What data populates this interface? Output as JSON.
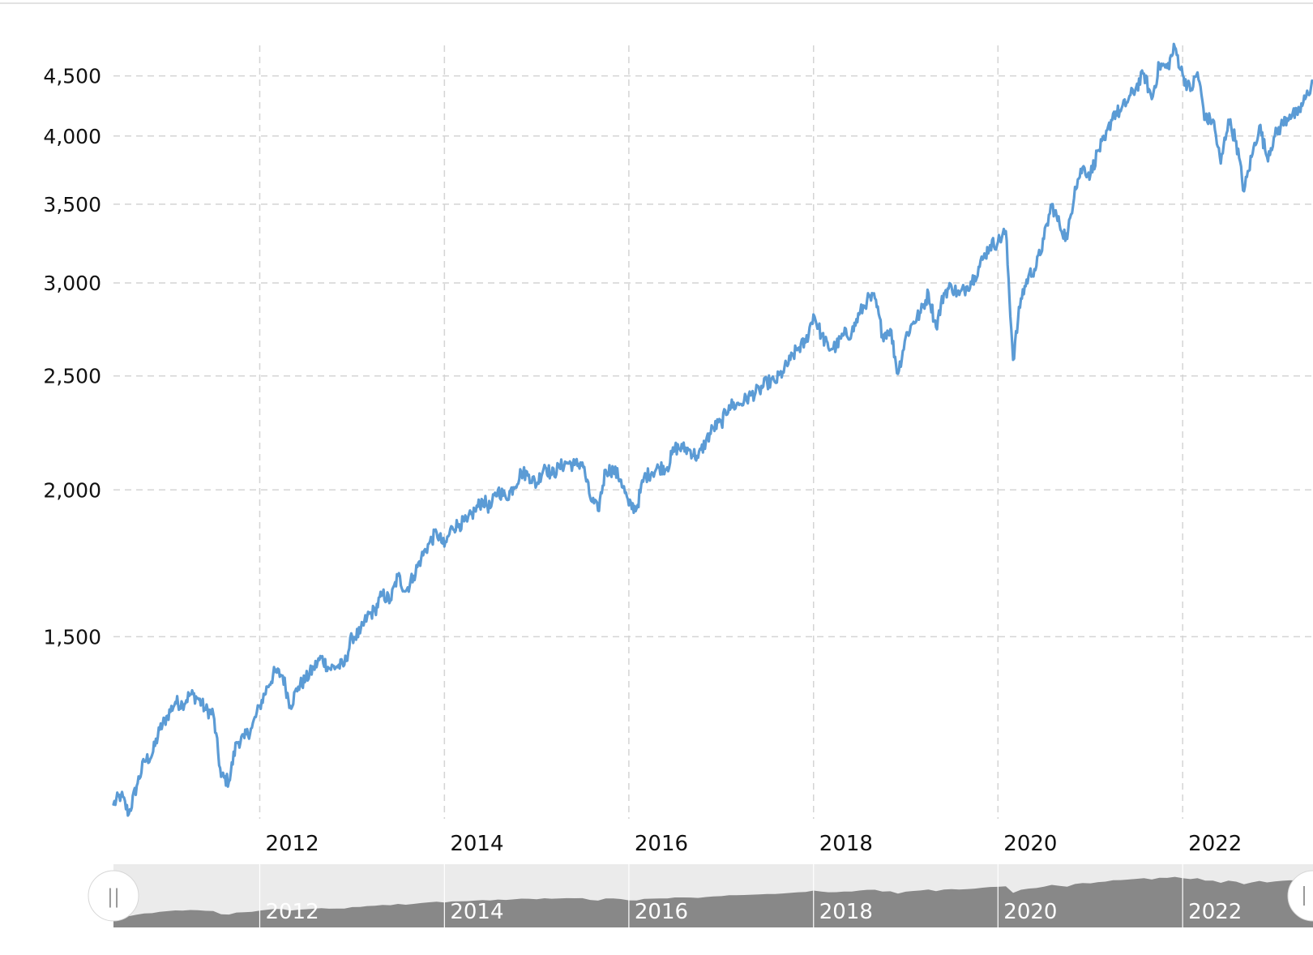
{
  "chart_data": {
    "type": "line",
    "title": "",
    "xlabel": "",
    "ylabel": "",
    "y_scale": "log",
    "ylim": [
      1050,
      4900
    ],
    "xlim": [
      "2010-06",
      "2023-06"
    ],
    "grid": true,
    "legend": "none",
    "yticks": [
      {
        "value": 1500,
        "label": "1,500"
      },
      {
        "value": 2000,
        "label": "2,000"
      },
      {
        "value": 2500,
        "label": "2,500"
      },
      {
        "value": 3000,
        "label": "3,000"
      },
      {
        "value": 3500,
        "label": "3,500"
      },
      {
        "value": 4000,
        "label": "4,000"
      },
      {
        "value": 4500,
        "label": "4,500"
      }
    ],
    "xticks": [
      {
        "value": "2012",
        "label": "2012"
      },
      {
        "value": "2014",
        "label": "2014"
      },
      {
        "value": "2016",
        "label": "2016"
      },
      {
        "value": "2018",
        "label": "2018"
      },
      {
        "value": "2020",
        "label": "2020"
      },
      {
        "value": "2022",
        "label": "2022"
      }
    ],
    "series": [
      {
        "color": "#5b9bd5",
        "x": [
          "2010-06-01",
          "2010-07-01",
          "2010-08-01",
          "2010-09-01",
          "2010-10-01",
          "2010-11-01",
          "2010-12-01",
          "2011-01-01",
          "2011-02-01",
          "2011-03-01",
          "2011-04-01",
          "2011-05-01",
          "2011-06-01",
          "2011-07-01",
          "2011-08-01",
          "2011-09-01",
          "2011-10-01",
          "2011-11-01",
          "2011-12-01",
          "2012-01-01",
          "2012-02-01",
          "2012-03-01",
          "2012-04-01",
          "2012-05-01",
          "2012-06-01",
          "2012-07-01",
          "2012-08-01",
          "2012-09-01",
          "2012-10-01",
          "2012-11-01",
          "2012-12-01",
          "2013-01-01",
          "2013-02-01",
          "2013-03-01",
          "2013-04-01",
          "2013-05-01",
          "2013-06-01",
          "2013-07-01",
          "2013-08-01",
          "2013-09-01",
          "2013-10-01",
          "2013-11-01",
          "2013-12-01",
          "2014-01-01",
          "2014-02-01",
          "2014-03-01",
          "2014-04-01",
          "2014-05-01",
          "2014-06-01",
          "2014-07-01",
          "2014-08-01",
          "2014-09-01",
          "2014-10-01",
          "2014-11-01",
          "2014-12-01",
          "2015-01-01",
          "2015-02-01",
          "2015-03-01",
          "2015-04-01",
          "2015-05-01",
          "2015-06-01",
          "2015-07-01",
          "2015-08-01",
          "2015-09-01",
          "2015-10-01",
          "2015-11-01",
          "2015-12-01",
          "2016-01-01",
          "2016-02-01",
          "2016-03-01",
          "2016-04-01",
          "2016-05-01",
          "2016-06-01",
          "2016-07-01",
          "2016-08-01",
          "2016-09-01",
          "2016-10-01",
          "2016-11-01",
          "2016-12-01",
          "2017-01-01",
          "2017-02-01",
          "2017-03-01",
          "2017-04-01",
          "2017-05-01",
          "2017-06-01",
          "2017-07-01",
          "2017-08-01",
          "2017-09-01",
          "2017-10-01",
          "2017-11-01",
          "2017-12-01",
          "2018-01-01",
          "2018-02-01",
          "2018-03-01",
          "2018-04-01",
          "2018-05-01",
          "2018-06-01",
          "2018-07-01",
          "2018-08-01",
          "2018-09-01",
          "2018-10-01",
          "2018-11-01",
          "2018-12-01",
          "2019-01-01",
          "2019-02-01",
          "2019-03-01",
          "2019-04-01",
          "2019-05-01",
          "2019-06-01",
          "2019-07-01",
          "2019-08-01",
          "2019-09-01",
          "2019-10-01",
          "2019-11-01",
          "2019-12-01",
          "2020-01-01",
          "2020-02-01",
          "2020-03-01",
          "2020-04-01",
          "2020-05-01",
          "2020-06-01",
          "2020-07-01",
          "2020-08-01",
          "2020-09-01",
          "2020-10-01",
          "2020-11-01",
          "2020-12-01",
          "2021-01-01",
          "2021-02-01",
          "2021-03-01",
          "2021-04-01",
          "2021-05-01",
          "2021-06-01",
          "2021-07-01",
          "2021-08-01",
          "2021-09-01",
          "2021-10-01",
          "2021-11-01",
          "2021-12-01",
          "2022-01-01",
          "2022-02-01",
          "2022-03-01",
          "2022-04-01",
          "2022-05-01",
          "2022-06-01",
          "2022-07-01",
          "2022-08-01",
          "2022-09-01",
          "2022-10-01",
          "2022-11-01",
          "2022-12-01",
          "2023-01-01",
          "2023-02-01",
          "2023-03-01",
          "2023-04-01",
          "2023-05-01",
          "2023-06-01"
        ],
        "y": [
          1080,
          1100,
          1060,
          1120,
          1175,
          1190,
          1250,
          1285,
          1320,
          1315,
          1340,
          1330,
          1300,
          1290,
          1140,
          1130,
          1220,
          1230,
          1255,
          1310,
          1360,
          1400,
          1390,
          1310,
          1360,
          1380,
          1410,
          1440,
          1410,
          1415,
          1420,
          1500,
          1510,
          1560,
          1580,
          1630,
          1610,
          1690,
          1640,
          1690,
          1750,
          1800,
          1840,
          1790,
          1860,
          1870,
          1880,
          1920,
          1960,
          1930,
          2000,
          1970,
          2010,
          2070,
          2060,
          2020,
          2100,
          2060,
          2090,
          2110,
          2100,
          2110,
          1970,
          1920,
          2080,
          2080,
          2040,
          1940,
          1930,
          2050,
          2070,
          2090,
          2090,
          2170,
          2170,
          2160,
          2130,
          2200,
          2260,
          2280,
          2360,
          2360,
          2380,
          2410,
          2430,
          2470,
          2470,
          2520,
          2580,
          2640,
          2670,
          2820,
          2710,
          2640,
          2650,
          2710,
          2720,
          2820,
          2900,
          2910,
          2710,
          2740,
          2510,
          2700,
          2780,
          2830,
          2940,
          2750,
          2940,
          2980,
          2930,
          2980,
          3040,
          3140,
          3230,
          3250,
          3320,
          2580,
          2910,
          3040,
          3100,
          3270,
          3500,
          3360,
          3270,
          3620,
          3760,
          3710,
          3890,
          3970,
          4180,
          4200,
          4300,
          4400,
          4520,
          4300,
          4600,
          4570,
          4760,
          4510,
          4370,
          4530,
          4130,
          4130,
          3790,
          4130,
          3960,
          3590,
          3840,
          4080,
          3840,
          4000,
          4100,
          4170,
          4170,
          4300,
          4450
        ]
      }
    ]
  },
  "navigator": {
    "xticks": [
      "2012",
      "2014",
      "2016",
      "2018",
      "2020",
      "2022"
    ],
    "left_handle_glyph": "||"
  }
}
